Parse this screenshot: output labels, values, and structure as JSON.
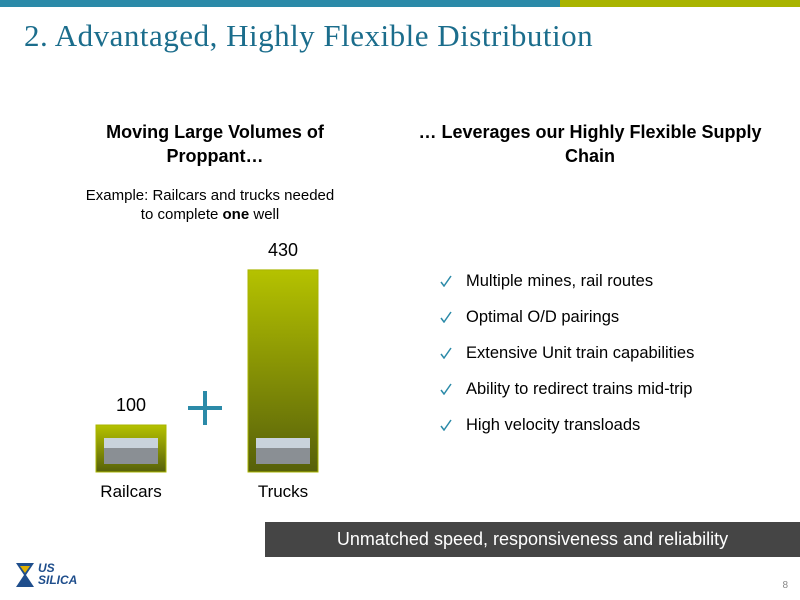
{
  "header": {
    "title": "2. Advantaged, Highly Flexible Distribution"
  },
  "left": {
    "heading": "Moving Large Volumes of Proppant…",
    "subheading": [
      "Example: Railcars and trucks needed to complete ",
      "one",
      " well"
    ]
  },
  "chart_data": {
    "type": "bar",
    "categories": [
      "Railcars",
      "Trucks"
    ],
    "values": [
      100,
      430
    ],
    "color": "#a9b400"
  },
  "right": {
    "heading": "… Leverages our Highly Flexible Supply Chain",
    "bullets": [
      "Multiple mines, rail routes",
      "Optimal O/D pairings",
      "Extensive Unit train capabilities",
      "Ability to redirect trains mid-trip",
      "High velocity transloads"
    ]
  },
  "banner": "Unmatched speed, responsiveness and reliability",
  "logo": {
    "line1": "US",
    "line2": "SILICA"
  },
  "page_number": "8"
}
